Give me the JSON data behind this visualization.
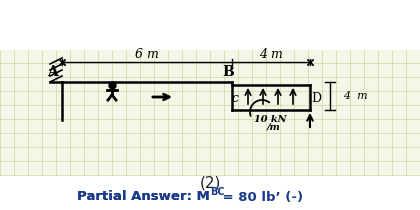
{
  "bg_color": "#f5f5e8",
  "grid_color": "#c8d8a0",
  "line_color": "#000000",
  "label_A": "A",
  "label_B": "B",
  "label_C": "c",
  "label_D": "D",
  "label_10kN": "10 kN\n/m",
  "label_4m_right": "4  m",
  "label_6m": "6 m",
  "label_4m_bot": "4 m",
  "caption": "(2)",
  "answer_text": "Partial Answer: M",
  "answer_sub": "BC",
  "answer_end": " = 80 lb’ (-)",
  "caption_color": "#222222",
  "answer_color": "#1a3a8a",
  "frame_color": "#1a1a1a"
}
